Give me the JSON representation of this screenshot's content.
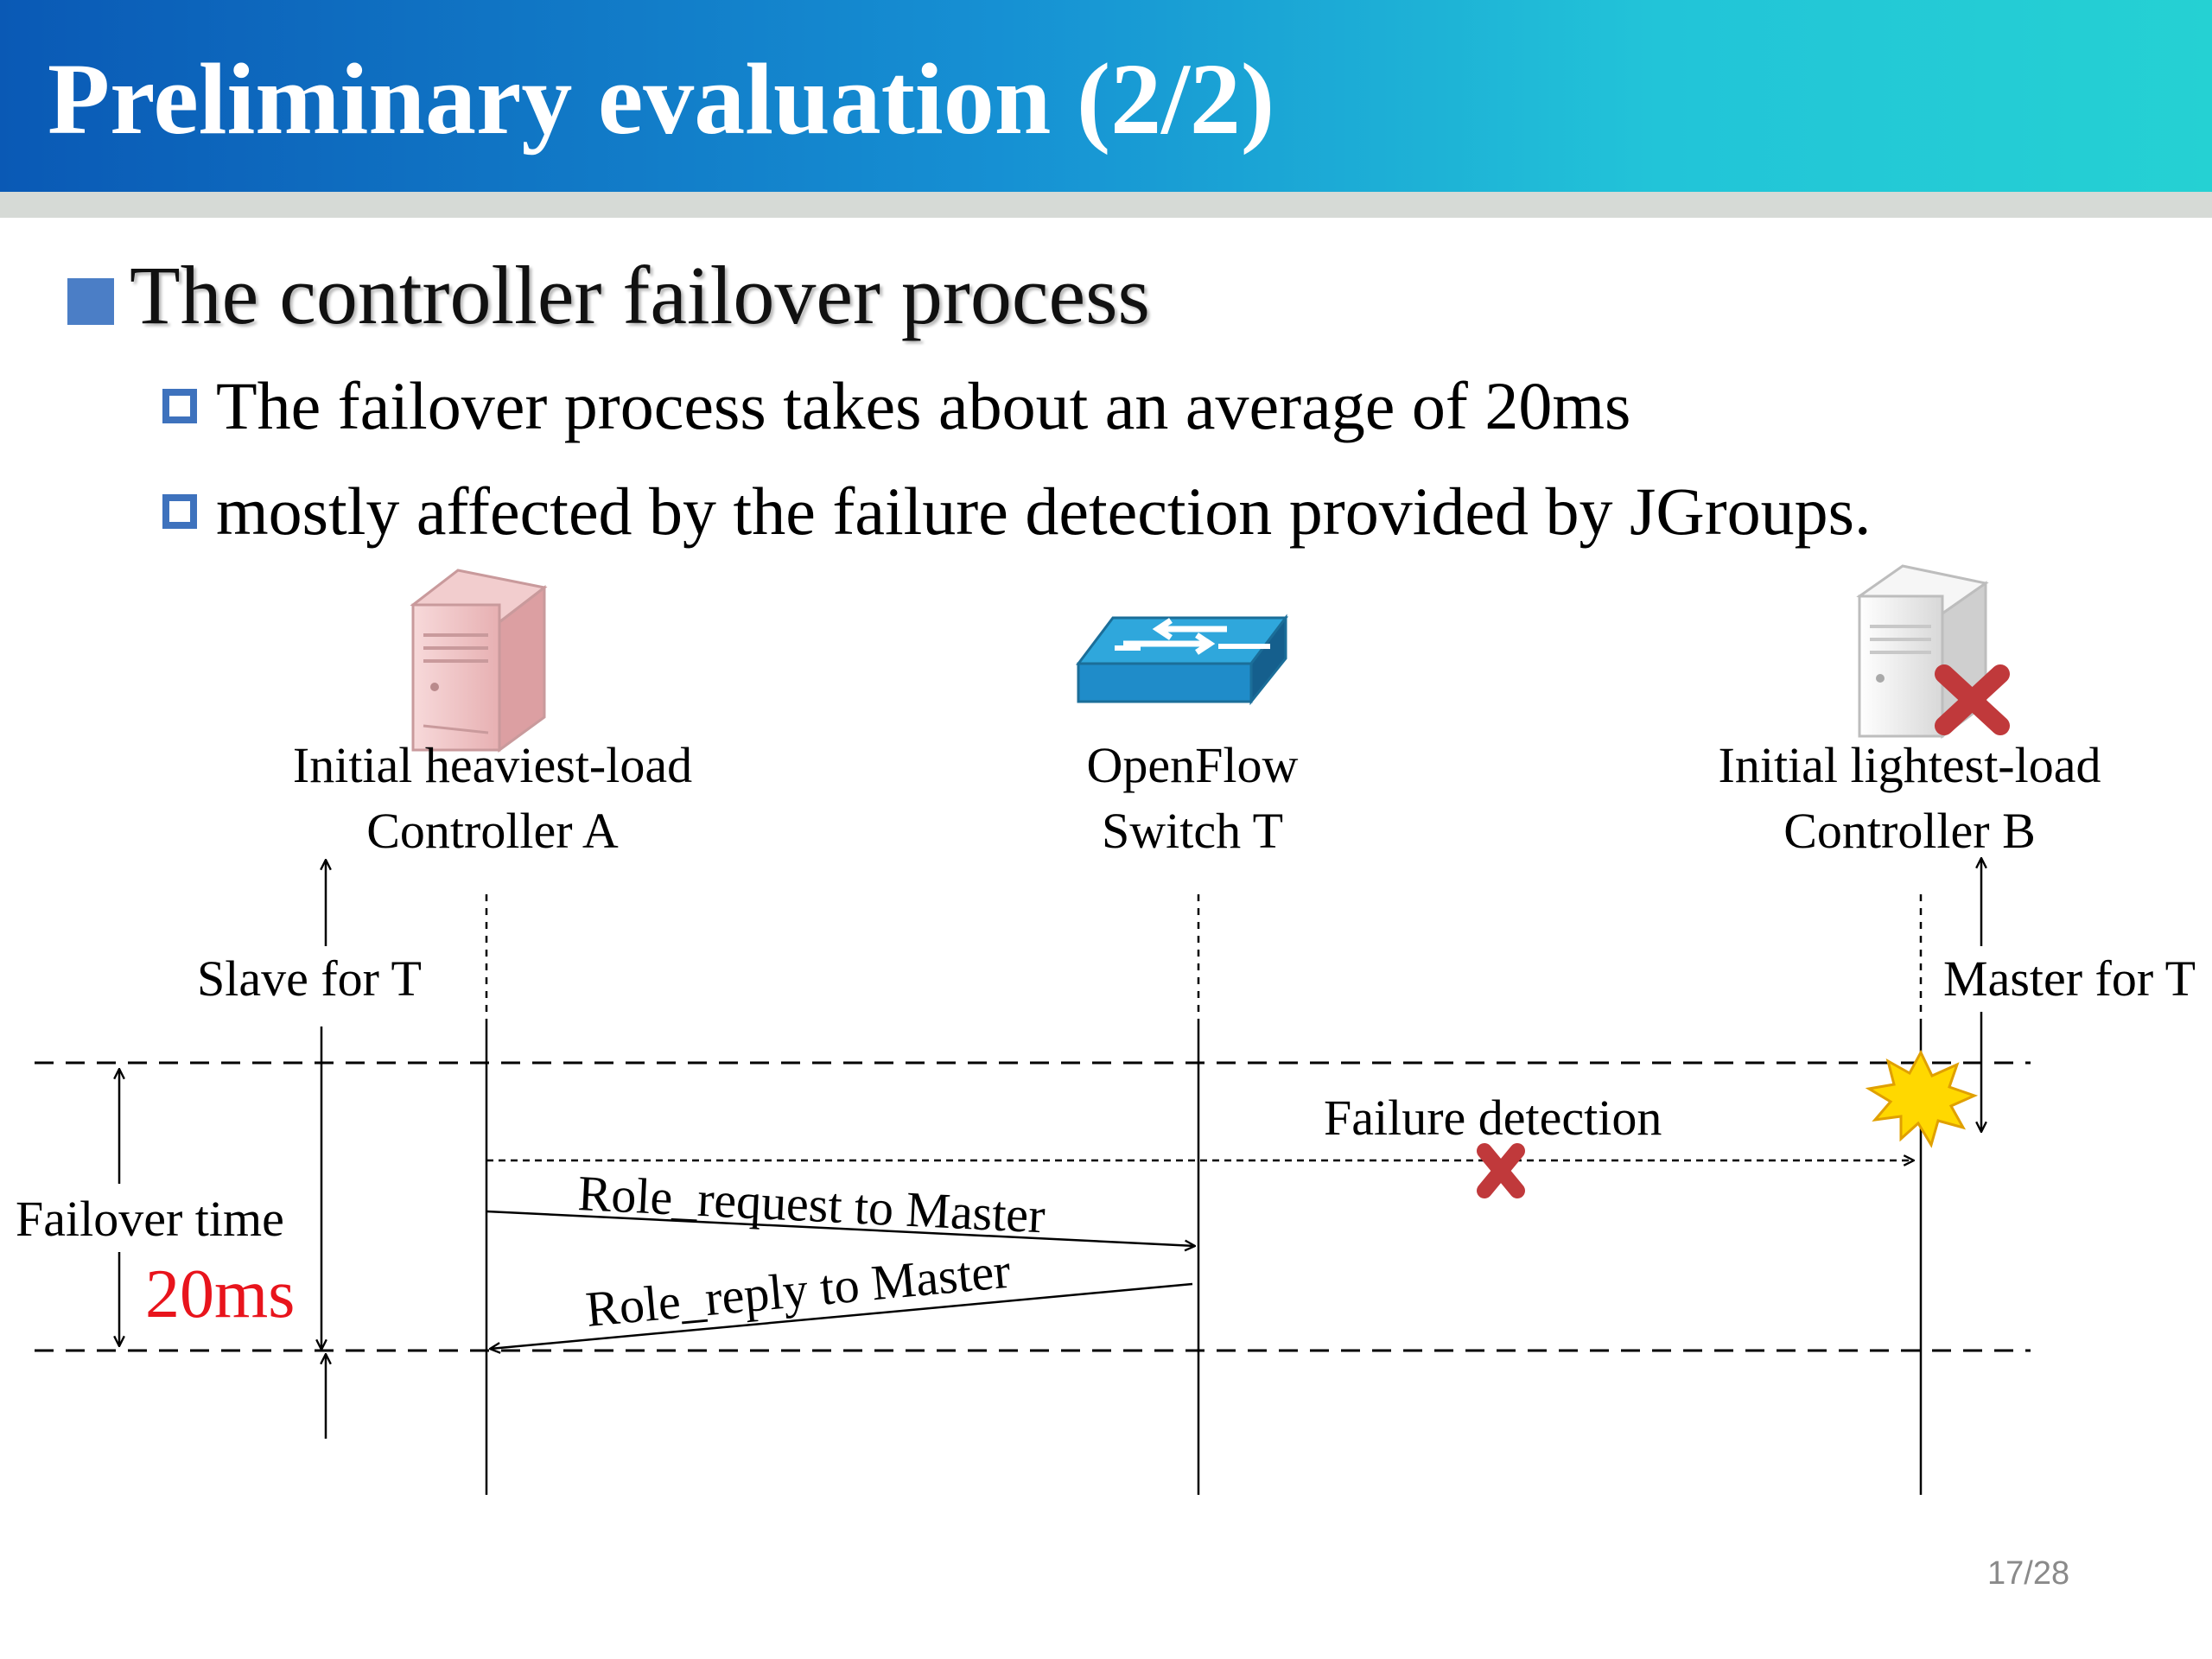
{
  "slide": {
    "title": "Preliminary evaluation (2/2)",
    "heading": "The controller failover process",
    "bullets": [
      "The failover process takes about an average of 20ms",
      "mostly affected by the failure detection provided by JGroups."
    ],
    "page_number": "17/28"
  },
  "diagram": {
    "nodes": {
      "controller_a": {
        "line1": "Initial heaviest-load",
        "line2": "Controller A",
        "icon": "server-icon"
      },
      "switch_t": {
        "line1": "OpenFlow",
        "line2": "Switch T",
        "icon": "switch-icon"
      },
      "controller_b": {
        "line1": "Initial lightest-load",
        "line2": "Controller B",
        "icon": "server-failed-icon"
      }
    },
    "role_labels": {
      "slave": "Slave for T",
      "master": "Master for T"
    },
    "failover": {
      "label": "Failover time",
      "value": "20ms",
      "value_color": "#e8141c"
    },
    "messages": {
      "failure_detection": "Failure detection",
      "role_request": "Role_request to Master",
      "role_reply": "Role_reply to Master"
    }
  }
}
